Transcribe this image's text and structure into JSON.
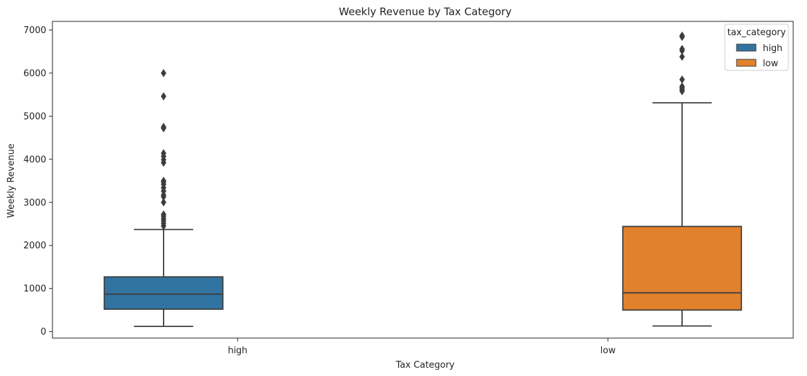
{
  "chart_data": {
    "type": "box",
    "title": "Weekly Revenue by Tax Category",
    "xlabel": "Tax Category",
    "ylabel": "Weekly Revenue",
    "categories": [
      "high",
      "low"
    ],
    "ylim": [
      -150,
      7200
    ],
    "yticks": [
      0,
      1000,
      2000,
      3000,
      4000,
      5000,
      6000,
      7000
    ],
    "hue": "tax_category",
    "legend": {
      "title": "tax_category",
      "placement": "top-right",
      "entries": [
        "high",
        "low"
      ]
    },
    "colors": {
      "high": "#3274a1",
      "low": "#e1812c",
      "edge": "#3d3d3d"
    },
    "grid": false,
    "series": [
      {
        "name": "high",
        "category": "high",
        "whisker_low": 120,
        "q1": 520,
        "median": 870,
        "q3": 1270,
        "whisker_high": 2370,
        "outliers": [
          2450,
          2510,
          2570,
          2620,
          2680,
          2720,
          3000,
          3130,
          3170,
          3260,
          3340,
          3420,
          3470,
          3500,
          3920,
          3990,
          4070,
          4140,
          4720,
          4750,
          5460,
          6000
        ]
      },
      {
        "name": "low",
        "category": "low",
        "whisker_low": 130,
        "q1": 500,
        "median": 900,
        "q3": 2440,
        "whisker_high": 5310,
        "outliers": [
          5580,
          5620,
          5660,
          5690,
          5850,
          6380,
          6520,
          6560,
          6840,
          6870
        ]
      }
    ]
  }
}
